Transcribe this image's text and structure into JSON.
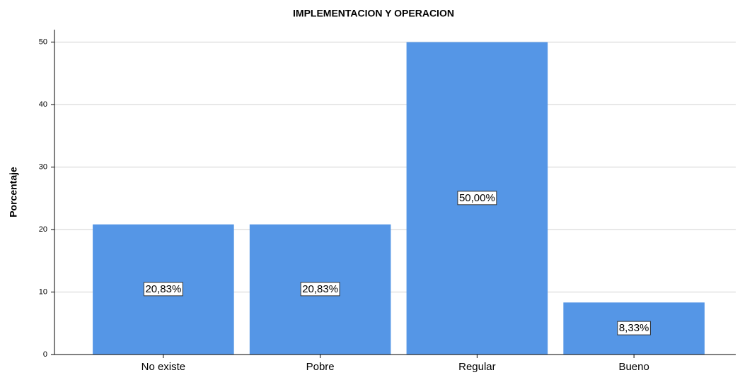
{
  "chart_data": {
    "type": "bar",
    "title": "IMPLEMENTACION Y OPERACION",
    "y_label": "Porcentaje",
    "categories": [
      "No existe",
      "Pobre",
      "Regular",
      "Bueno"
    ],
    "values": [
      20.83,
      20.83,
      50.0,
      8.33
    ],
    "value_labels": [
      "20,83%",
      "20,83%",
      "50,00%",
      "8,33%"
    ],
    "color": "#5596e6",
    "ylim": [
      0,
      52
    ],
    "yticks": [
      0,
      10,
      20,
      30,
      40,
      50
    ],
    "grid": true
  }
}
